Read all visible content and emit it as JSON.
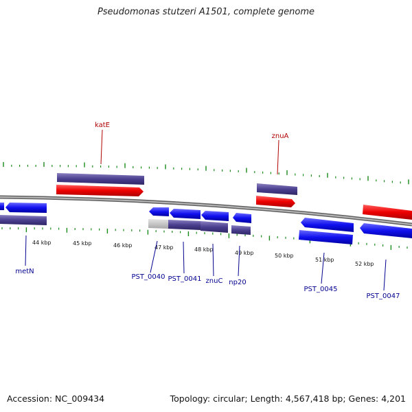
{
  "title": "Pseudomonas stutzeri A1501, complete genome",
  "footer": {
    "accession": "Accession: NC_009434",
    "summary": "Topology: circular; Length: 4,567,418 bp; Genes: 4,201"
  },
  "colors": {
    "forward_gene": "#ff0000",
    "reverse_gene": "#0000ff",
    "cds": "#4b3f8f",
    "pseudo": "#c8c8c8",
    "backbone": "#808080",
    "tick": "#1a8a1a",
    "label_forward": "#b00000",
    "label_reverse": "#000090"
  },
  "ticks": [
    {
      "label": "44 kbp"
    },
    {
      "label": "45 kbp"
    },
    {
      "label": "46 kbp"
    },
    {
      "label": "47 kbp"
    },
    {
      "label": "48 kbp"
    },
    {
      "label": "49 kbp"
    },
    {
      "label": "50 kbp"
    },
    {
      "label": "51 kbp"
    },
    {
      "label": "52 kbp"
    }
  ],
  "gene_labels": {
    "katE": "katE",
    "znuA": "znuA",
    "metN": "metN",
    "PST_0040": "PST_0040",
    "PST_0041": "PST_0041",
    "znuC": "znuC",
    "np20": "np20",
    "PST_0045": "PST_0045",
    "PST_0047": "PST_0047"
  }
}
